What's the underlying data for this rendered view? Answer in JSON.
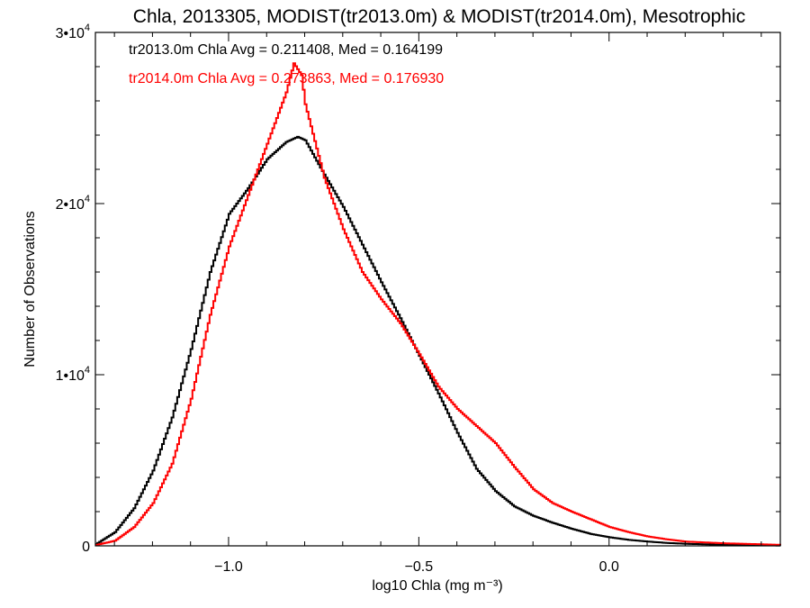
{
  "chart_data": {
    "type": "line",
    "step": true,
    "title": "Chla, 2013305, MODIST(tr2013.0m) & MODIST(tr2014.0m), Mesotrophic",
    "xlabel": "log10 Chla (mg m⁻³)",
    "ylabel": "Number of Observations",
    "xlim": [
      -1.35,
      0.45
    ],
    "ylim": [
      0,
      30000
    ],
    "grid": false,
    "x_ticks": [
      {
        "value": -1.0,
        "label": "−1.0"
      },
      {
        "value": -0.5,
        "label": "−0.5"
      },
      {
        "value": 0.0,
        "label": "0.0"
      }
    ],
    "y_ticks": [
      {
        "value": 0,
        "base": "0",
        "exp": ""
      },
      {
        "value": 10000,
        "base": "1•10",
        "exp": "4"
      },
      {
        "value": 20000,
        "base": "2•10",
        "exp": "4"
      },
      {
        "value": 30000,
        "base": "3•10",
        "exp": "4"
      }
    ],
    "annotations": [
      {
        "text": "tr2013.0m Chla Avg = 0.211408, Med = 0.164199",
        "color": "#000000"
      },
      {
        "text": "tr2014.0m Chla Avg = 0.273863, Med = 0.176930",
        "color": "#ff0000"
      }
    ],
    "series": [
      {
        "color": "#000000",
        "x": [
          -1.35,
          -1.3,
          -1.25,
          -1.2,
          -1.15,
          -1.1,
          -1.05,
          -1.0,
          -0.95,
          -0.9,
          -0.85,
          -0.82,
          -0.8,
          -0.75,
          -0.7,
          -0.65,
          -0.6,
          -0.55,
          -0.5,
          -0.45,
          -0.4,
          -0.35,
          -0.3,
          -0.25,
          -0.2,
          -0.15,
          -0.1,
          -0.05,
          0.0,
          0.05,
          0.1,
          0.15,
          0.2,
          0.3,
          0.45
        ],
        "y": [
          100,
          800,
          2200,
          4400,
          7500,
          11500,
          16000,
          19400,
          20900,
          22600,
          23600,
          23900,
          23700,
          21700,
          19800,
          17600,
          15400,
          13300,
          11100,
          8900,
          6600,
          4500,
          3200,
          2300,
          1750,
          1350,
          1000,
          700,
          500,
          350,
          250,
          170,
          120,
          60,
          20
        ]
      },
      {
        "color": "#ff0000",
        "x": [
          -1.35,
          -1.3,
          -1.25,
          -1.2,
          -1.15,
          -1.1,
          -1.05,
          -1.0,
          -0.95,
          -0.9,
          -0.85,
          -0.83,
          -0.81,
          -0.8,
          -0.75,
          -0.7,
          -0.65,
          -0.6,
          -0.55,
          -0.5,
          -0.45,
          -0.4,
          -0.35,
          -0.3,
          -0.25,
          -0.2,
          -0.15,
          -0.1,
          -0.05,
          0.0,
          0.05,
          0.1,
          0.15,
          0.2,
          0.3,
          0.45
        ],
        "y": [
          50,
          300,
          1100,
          2500,
          4800,
          8600,
          13500,
          17500,
          20500,
          23500,
          26500,
          28200,
          27500,
          25800,
          21500,
          18500,
          16000,
          14400,
          13000,
          11200,
          9300,
          8000,
          7000,
          6000,
          4600,
          3300,
          2500,
          2000,
          1550,
          1100,
          800,
          550,
          380,
          250,
          150,
          60
        ]
      }
    ]
  }
}
